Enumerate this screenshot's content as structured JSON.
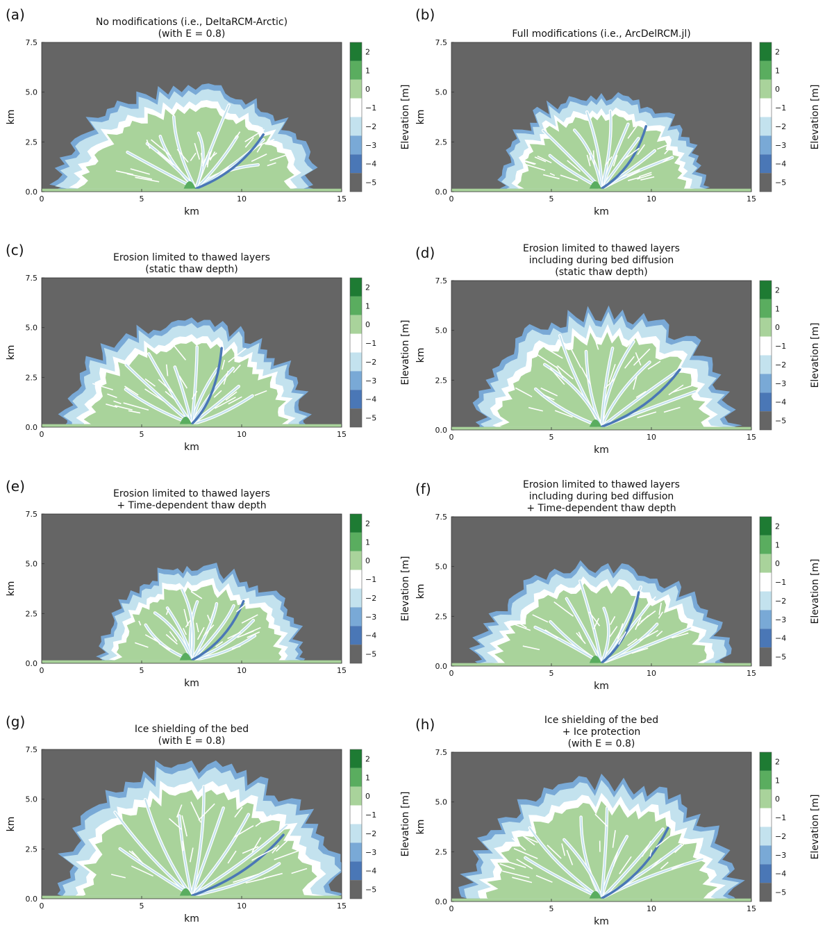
{
  "figure": {
    "background": "#ffffff"
  },
  "colorbar": {
    "label": "Elevation [m]",
    "levels": [
      2,
      1,
      0,
      -1,
      -2,
      -3,
      -4,
      -5
    ],
    "tick_labels": [
      "2",
      "1",
      "0",
      "−1",
      "−2",
      "−3",
      "−4",
      "−5"
    ],
    "colors": [
      "#1e7b33",
      "#5aad5f",
      "#a9d39b",
      "#ffffff",
      "#c3e2ee",
      "#79a9d6",
      "#4a77b6",
      "#656565"
    ]
  },
  "colors": {
    "ocean": "#656565",
    "land": "#a9d39b",
    "channel_deep": "#4a77b6",
    "channel_mid": "#79a9d6",
    "shallow": "#c3e2ee",
    "plain": "#ffffff",
    "high": "#5aad5f",
    "highest": "#1e7b33"
  },
  "chart_data": [
    {
      "type": "heatmap",
      "letter": "(a)",
      "title": [
        "No modifications (i.e., DeltaRCM-Arctic)",
        "(with E = 0.8)"
      ],
      "xlabel": "km",
      "ylabel": "km",
      "xlim": [
        0,
        15
      ],
      "ylim": [
        0,
        7.5
      ],
      "xticks": [
        0,
        5,
        10,
        15
      ],
      "yticks": [
        0.0,
        2.5,
        5.0,
        7.5
      ],
      "xtick_labels": [
        "0",
        "5",
        "10",
        "15"
      ],
      "ytick_labels": [
        "0.0",
        "2.5",
        "5.0",
        "7.5"
      ],
      "apex_x_km": 7.7,
      "extent_x_km": [
        1.0,
        13.4
      ],
      "max_y_km": 5.8
    },
    {
      "type": "heatmap",
      "letter": "(b)",
      "title": [
        "Full modifications (i.e., ArcDelRCM.jl)"
      ],
      "xlabel": "km",
      "ylabel": "km",
      "xlim": [
        0,
        15
      ],
      "ylim": [
        0,
        7.5
      ],
      "xticks": [
        0,
        5,
        10,
        15
      ],
      "yticks": [
        0.0,
        2.5,
        5.0,
        7.5
      ],
      "xtick_labels": [
        "0",
        "5",
        "10",
        "15"
      ],
      "ytick_labels": [
        "0.0",
        "2.5",
        "5.0",
        "7.5"
      ],
      "apex_x_km": 7.5,
      "extent_x_km": [
        2.6,
        12.5
      ],
      "max_y_km": 5.4
    },
    {
      "type": "heatmap",
      "letter": "(c)",
      "title": [
        "Erosion limited to thawed layers",
        "(static thaw depth)"
      ],
      "xlabel": "km",
      "ylabel": "km",
      "xlim": [
        0,
        15
      ],
      "ylim": [
        0,
        7.5
      ],
      "xticks": [
        0,
        5,
        10,
        15
      ],
      "yticks": [
        0.0,
        2.5,
        5.0,
        7.5
      ],
      "xtick_labels": [
        "0",
        "5",
        "10",
        "15"
      ],
      "ytick_labels": [
        "0.0",
        "2.5",
        "5.0",
        "7.5"
      ],
      "apex_x_km": 7.5,
      "extent_x_km": [
        1.4,
        13.0
      ],
      "max_y_km": 5.8
    },
    {
      "type": "heatmap",
      "letter": "(d)",
      "title": [
        "Erosion limited to thawed layers",
        "including during bed diffusion",
        "(static thaw depth)"
      ],
      "xlabel": "km",
      "ylabel": "km",
      "xlim": [
        0,
        15
      ],
      "ylim": [
        0,
        7.5
      ],
      "xticks": [
        0,
        5,
        10,
        15
      ],
      "yticks": [
        0.0,
        2.5,
        5.0,
        7.5
      ],
      "xtick_labels": [
        "0",
        "5",
        "10",
        "15"
      ],
      "ytick_labels": [
        "0.0",
        "2.5",
        "5.0",
        "7.5"
      ],
      "apex_x_km": 7.5,
      "extent_x_km": [
        1.6,
        13.8
      ],
      "max_y_km": 6.5
    },
    {
      "type": "heatmap",
      "letter": "(e)",
      "title": [
        "Erosion limited to thawed layers",
        "+ Time-dependent thaw depth"
      ],
      "xlabel": "km",
      "ylabel": "km",
      "xlim": [
        0,
        15
      ],
      "ylim": [
        0,
        7.5
      ],
      "xticks": [
        0,
        5,
        10,
        15
      ],
      "yticks": [
        0.0,
        2.5,
        5.0,
        7.5
      ],
      "xtick_labels": [
        "0",
        "5",
        "10",
        "15"
      ],
      "ytick_labels": [
        "0.0",
        "2.5",
        "5.0",
        "7.5"
      ],
      "apex_x_km": 7.5,
      "extent_x_km": [
        3.2,
        12.9
      ],
      "max_y_km": 5.3
    },
    {
      "type": "heatmap",
      "letter": "(f)",
      "title": [
        "Erosion limited to thawed layers",
        "including during bed diffusion",
        "+ Time-dependent thaw depth"
      ],
      "xlabel": "km",
      "ylabel": "km",
      "xlim": [
        0,
        15
      ],
      "ylim": [
        0,
        7.5
      ],
      "xticks": [
        0,
        5,
        10,
        15
      ],
      "yticks": [
        0.0,
        2.5,
        5.0,
        7.5
      ],
      "xtick_labels": [
        "0",
        "5",
        "10",
        "15"
      ],
      "ytick_labels": [
        "0.0",
        "2.5",
        "5.0",
        "7.5"
      ],
      "apex_x_km": 7.5,
      "extent_x_km": [
        1.5,
        13.5
      ],
      "max_y_km": 5.5
    },
    {
      "type": "heatmap",
      "letter": "(g)",
      "title": [
        "Ice shielding of the bed",
        "(with E = 0.8)"
      ],
      "xlabel": "km",
      "ylabel": "km",
      "xlim": [
        0,
        15
      ],
      "ylim": [
        0,
        7.5
      ],
      "xticks": [
        0,
        5,
        10,
        15
      ],
      "yticks": [
        0.0,
        2.5,
        5.0,
        7.5
      ],
      "xtick_labels": [
        "0",
        "5",
        "10",
        "15"
      ],
      "ytick_labels": [
        "0.0",
        "2.5",
        "5.0",
        "7.5"
      ],
      "apex_x_km": 7.5,
      "extent_x_km": [
        1.2,
        14.6
      ],
      "max_y_km": 7.4
    },
    {
      "type": "heatmap",
      "letter": "(h)",
      "title": [
        "Ice shielding of the bed",
        "+ Ice protection",
        "(with E = 0.8)"
      ],
      "xlabel": "km",
      "ylabel": "km",
      "xlim": [
        0,
        15
      ],
      "ylim": [
        0,
        7.5
      ],
      "xticks": [
        0,
        5,
        10,
        15
      ],
      "yticks": [
        0.0,
        2.5,
        5.0,
        7.5
      ],
      "xtick_labels": [
        "0",
        "5",
        "10",
        "15"
      ],
      "ytick_labels": [
        "0.0",
        "2.5",
        "5.0",
        "7.5"
      ],
      "apex_x_km": 7.5,
      "extent_x_km": [
        1.0,
        14.0
      ],
      "max_y_km": 6.6
    }
  ]
}
